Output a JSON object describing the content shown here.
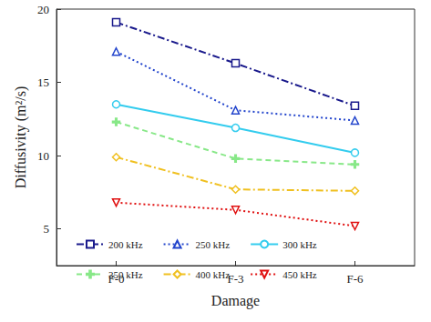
{
  "chart_data": {
    "type": "line",
    "x_label": "Damage",
    "y_label": "Diffusivity (m²/s)",
    "categories": [
      "F-0",
      "F-3",
      "F-6"
    ],
    "series": [
      {
        "name": "200 kHz",
        "color": "#1a1a8c",
        "marker": "square",
        "line_style": "dashdot",
        "values": [
          19.1,
          16.3,
          13.4
        ]
      },
      {
        "name": "250 kHz",
        "color": "#2244cc",
        "marker": "triangle",
        "line_style": "dotted",
        "values": [
          17.1,
          13.1,
          12.4
        ]
      },
      {
        "name": "300 kHz",
        "color": "#33ccee",
        "marker": "circle",
        "line_style": "solid",
        "values": [
          13.5,
          11.9,
          10.2
        ]
      },
      {
        "name": "350 kHz",
        "color": "#88e888",
        "marker": "plus",
        "line_style": "dashed",
        "values": [
          12.3,
          9.8,
          9.4
        ]
      },
      {
        "name": "400 kHz",
        "color": "#f0c020",
        "marker": "diamond",
        "line_style": "dashdot",
        "values": [
          9.9,
          7.7,
          7.6
        ]
      },
      {
        "name": "450 kHz",
        "color": "#e01010",
        "marker": "triangle_down",
        "line_style": "dotted",
        "values": [
          6.8,
          6.3,
          5.2
        ]
      }
    ],
    "ylim": [
      2.5,
      20
    ],
    "yticks": [
      5,
      10,
      15,
      20
    ],
    "grid": false,
    "legend": "bottom"
  }
}
